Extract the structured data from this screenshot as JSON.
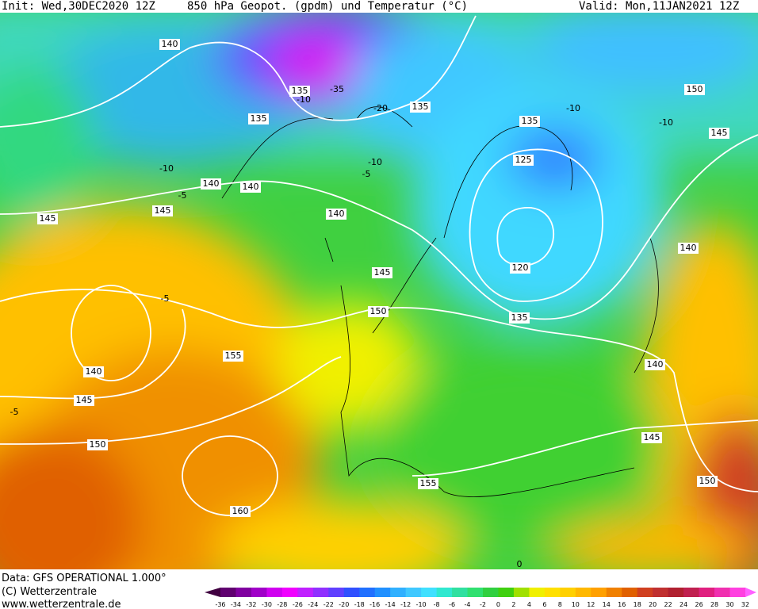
{
  "header": {
    "init": "Init: Wed,30DEC2020 12Z",
    "title": "850 hPa Geopot. (gpdm) und Temperatur (°C)",
    "valid": "Valid: Mon,11JAN2021 12Z"
  },
  "contour_labels": [
    "140",
    "135",
    "-10",
    "-35",
    "-20",
    "135",
    "135",
    "-10",
    "140",
    "140",
    "-5",
    "145",
    "145",
    "140",
    "-10",
    "-5",
    "135",
    "-10",
    "150",
    "-10",
    "145",
    "125",
    "120",
    "145",
    "150",
    "135",
    "140",
    "140",
    "-5",
    "155",
    "140",
    "145",
    "-5",
    "150",
    "160",
    "145",
    "150",
    "155",
    "0"
  ],
  "footer": {
    "data": "Data: GFS OPERATIONAL 1.000°",
    "copyright": "(C) Wetterzentrale",
    "url": "www.wetterzentrale.de"
  },
  "legend": {
    "labels": [
      "-36",
      "-34",
      "-32",
      "-30",
      "-28",
      "-26",
      "-24",
      "-22",
      "-20",
      "-18",
      "-16",
      "-14",
      "-12",
      "-10",
      "-8",
      "-6",
      "-4",
      "-2",
      "0",
      "2",
      "4",
      "6",
      "8",
      "10",
      "12",
      "14",
      "16",
      "18",
      "20",
      "22",
      "24",
      "26",
      "28",
      "30",
      "32"
    ],
    "colors": [
      "#400040",
      "#600070",
      "#8000a0",
      "#a000c8",
      "#d000f0",
      "#f000ff",
      "#c020ff",
      "#9030ff",
      "#6040ff",
      "#3050ff",
      "#2070ff",
      "#2090ff",
      "#30b0ff",
      "#40c8ff",
      "#40e0ff",
      "#30e8d0",
      "#30e0a0",
      "#30e070",
      "#30d040",
      "#40d010",
      "#a0e000",
      "#f0f000",
      "#ffe000",
      "#ffd000",
      "#ffb800",
      "#ffa000",
      "#f08000",
      "#e06000",
      "#d04020",
      "#c03030",
      "#b02030",
      "#c02050",
      "#e02080",
      "#f030b0",
      "#ff40e0",
      "#ff60ff"
    ]
  }
}
